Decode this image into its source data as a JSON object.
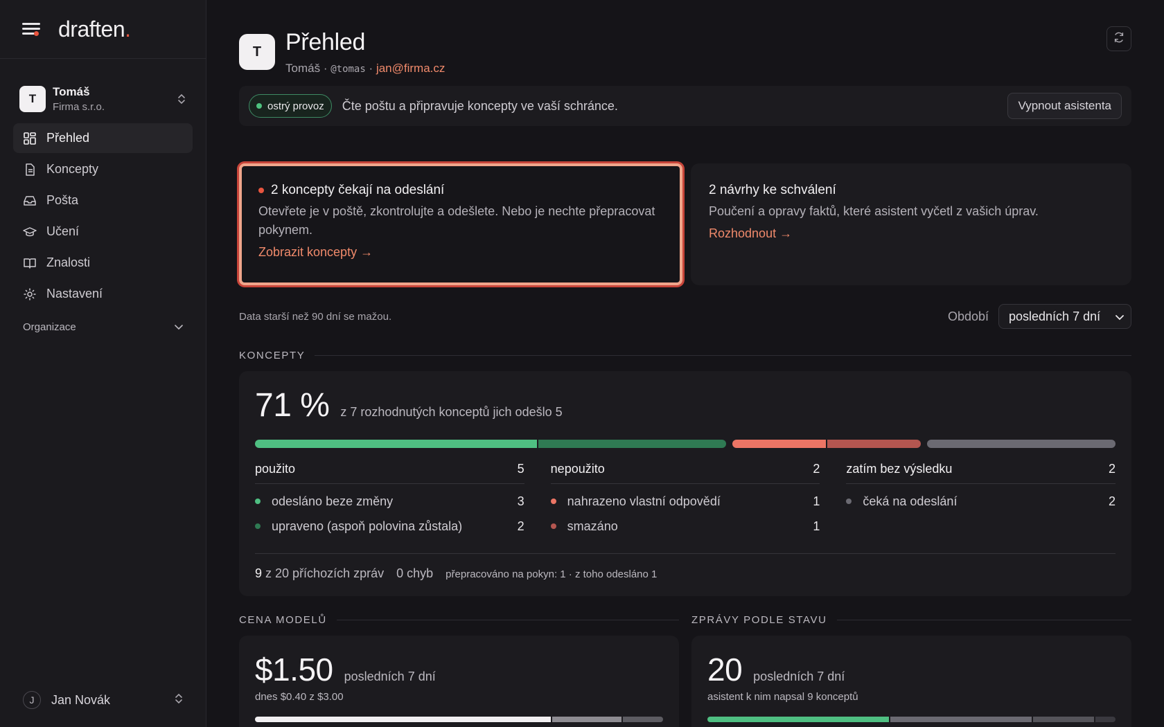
{
  "brand": {
    "wordmark": "draften",
    "accent": "#e8553f"
  },
  "org": {
    "initial": "T",
    "name": "Tomáš",
    "company": "Firma s.r.o."
  },
  "nav": [
    {
      "label": "Přehled",
      "icon": "dashboard-icon",
      "active": true
    },
    {
      "label": "Koncepty",
      "icon": "document-icon",
      "active": false
    },
    {
      "label": "Pošta",
      "icon": "inbox-icon",
      "active": false
    },
    {
      "label": "Učení",
      "icon": "graduation-cap-icon",
      "active": false
    },
    {
      "label": "Znalosti",
      "icon": "book-icon",
      "active": false
    },
    {
      "label": "Nastavení",
      "icon": "gear-icon",
      "active": false
    }
  ],
  "org_section": "Organizace",
  "user": {
    "initial": "J",
    "name": "Jan Novák"
  },
  "header": {
    "initial": "T",
    "title": "Přehled",
    "name": "Tomáš",
    "handle": "@tomas",
    "email": "jan@firma.cz",
    "sep": "·"
  },
  "status": {
    "pill": "ostrý provoz",
    "text": "Čte poštu a připravuje koncepty ve vaší schránce.",
    "button": "Vypnout asistenta"
  },
  "cards": [
    {
      "title": "2 koncepty čekají na odeslání",
      "desc": "Otevřete je v poště, zkontrolujte a odešlete. Nebo je nechte přepracovat pokynem.",
      "link": "Zobrazit koncepty →"
    },
    {
      "title": "2 návrhy ke schválení",
      "desc": "Poučení a opravy faktů, které asistent vyčetl z vašich úprav.",
      "link": "Rozhodnout →"
    }
  ],
  "meta": {
    "note": "Data starší než 90 dní se mažou.",
    "period_label": "Období",
    "period_value": "posledních 7 dní"
  },
  "koncepty": {
    "section": "KONCEPTY",
    "big": "71 %",
    "desc": "z 7 rozhodnutých konceptů jich odešlo 5",
    "bar": [
      {
        "group": "used",
        "segments": [
          {
            "value": 3,
            "color": "#4fbf82"
          },
          {
            "value": 2,
            "color": "#2f7a53"
          }
        ]
      },
      {
        "group": "unused",
        "segments": [
          {
            "value": 1,
            "color": "#ec7565"
          },
          {
            "value": 1,
            "color": "#b45650"
          }
        ]
      },
      {
        "group": "pending",
        "segments": [
          {
            "value": 2,
            "color": "#6b6a72"
          }
        ]
      }
    ],
    "cols": [
      {
        "head": "použito",
        "total": "5",
        "rows": [
          {
            "label": "odesláno beze změny",
            "value": "3",
            "color": "#4fbf82"
          },
          {
            "label": "upraveno (aspoň polovina zůstala)",
            "value": "2",
            "color": "#2f7a53"
          }
        ]
      },
      {
        "head": "nepoužito",
        "total": "2",
        "rows": [
          {
            "label": "nahrazeno vlastní odpovědí",
            "value": "1",
            "color": "#ec7565"
          },
          {
            "label": "smazáno",
            "value": "1",
            "color": "#b45650"
          }
        ]
      },
      {
        "head": "zatím bez výsledku",
        "total": "2",
        "rows": [
          {
            "label": "čeká na odeslání",
            "value": "2",
            "color": "#6b6a72"
          }
        ]
      }
    ],
    "footer": {
      "count": "9",
      "count_rest": "z 20 příchozích zpráv",
      "errors": "0 chyb",
      "note": "přepracováno na pokyn: 1 · z toho odesláno 1"
    }
  },
  "cena": {
    "section": "CENA MODELŮ",
    "big": "$1.50",
    "period": "posledních 7 dní",
    "sub": "dnes $0.40 z $3.00",
    "bar": [
      {
        "value": 0.73,
        "color": "#f2f0f2"
      },
      {
        "value": 0.17,
        "color": "#8e8c92"
      },
      {
        "value": 0.1,
        "color": "#5d5c62"
      }
    ]
  },
  "zpravy": {
    "section": "ZPRÁVY PODLE STAVU",
    "big": "20",
    "period": "posledních 7 dní",
    "sub": "asistent k nim napsal 9 konceptů",
    "bar": [
      {
        "value": 0.45,
        "color": "#4fbf82"
      },
      {
        "value": 0.35,
        "color": "#6b6a72"
      },
      {
        "value": 0.15,
        "color": "#55545a"
      },
      {
        "value": 0.05,
        "color": "#3a393f"
      }
    ]
  }
}
